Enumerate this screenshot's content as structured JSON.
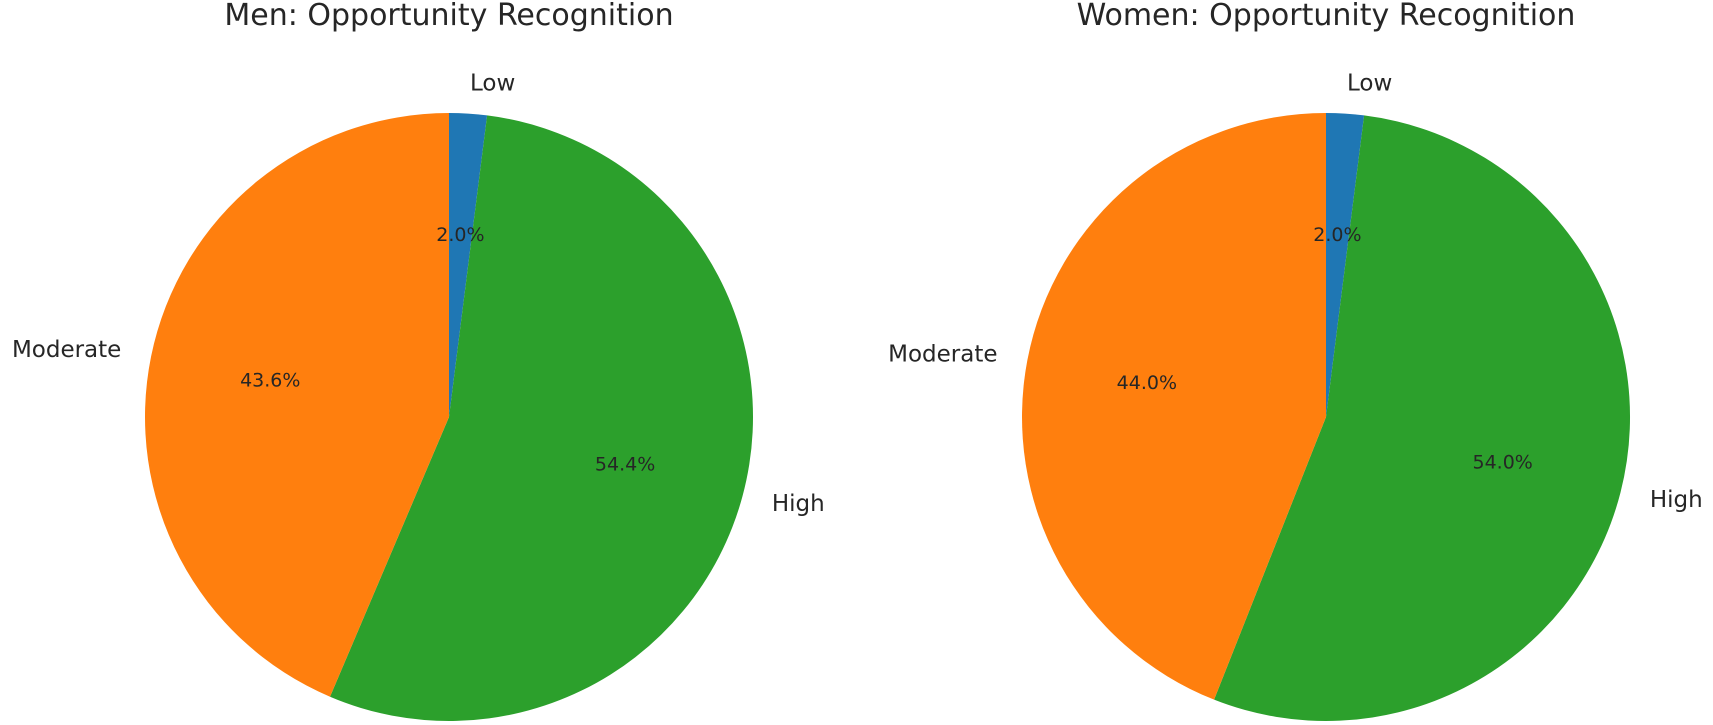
{
  "chart_data": [
    {
      "type": "pie",
      "title": "Men: Opportunity Recognition",
      "start_angle_deg": 90,
      "direction": "clockwise",
      "slices": [
        {
          "label": "Low",
          "value": 2.0,
          "pct_text": "2.0%",
          "color": "#1f77b4"
        },
        {
          "label": "High",
          "value": 54.4,
          "pct_text": "54.4%",
          "color": "#2ca02c"
        },
        {
          "label": "Moderate",
          "value": 43.6,
          "pct_text": "43.6%",
          "color": "#ff7f0e"
        }
      ]
    },
    {
      "type": "pie",
      "title": "Women: Opportunity Recognition",
      "start_angle_deg": 90,
      "direction": "clockwise",
      "slices": [
        {
          "label": "Low",
          "value": 2.0,
          "pct_text": "2.0%",
          "color": "#1f77b4"
        },
        {
          "label": "High",
          "value": 54.0,
          "pct_text": "54.0%",
          "color": "#2ca02c"
        },
        {
          "label": "Moderate",
          "value": 44.0,
          "pct_text": "44.0%",
          "color": "#ff7f0e"
        }
      ]
    }
  ]
}
